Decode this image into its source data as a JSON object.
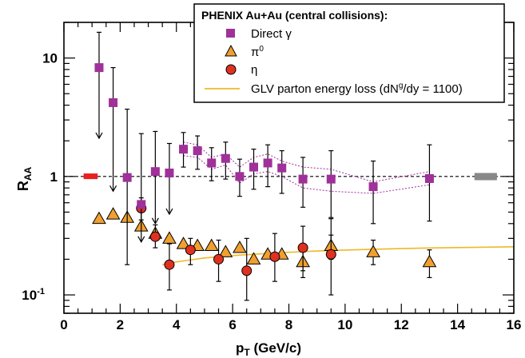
{
  "chart_data": {
    "type": "scatter",
    "title": "",
    "xlabel": "p",
    "xlabel_sub": "T",
    "xlabel_suffix": " (GeV/c)",
    "ylabel": "R",
    "ylabel_sub": "AA",
    "xlim": [
      0,
      16
    ],
    "ylim": [
      0.07,
      20
    ],
    "yscale": "log",
    "grid": false,
    "legend_placement": "top-right",
    "reference_line": 1,
    "x_ticks": [
      {
        "value": 0,
        "label": "0"
      },
      {
        "value": 2,
        "label": "2"
      },
      {
        "value": 4,
        "label": "4"
      },
      {
        "value": 6,
        "label": "6"
      },
      {
        "value": 8,
        "label": "8"
      },
      {
        "value": 10,
        "label": "10"
      },
      {
        "value": 12,
        "label": "12"
      },
      {
        "value": 14,
        "label": "14"
      },
      {
        "value": 16,
        "label": "16"
      }
    ],
    "y_ticks": [
      {
        "value": 10,
        "label": "10"
      },
      {
        "value": 1,
        "label": "1"
      },
      {
        "value": 0.1,
        "label": "10",
        "exp": "-1"
      }
    ],
    "legend": {
      "title": "PHENIX Au+Au (central collisions):",
      "entries": [
        {
          "label": "Direct γ"
        },
        {
          "label": "π",
          "sup": "0"
        },
        {
          "label": "η"
        },
        {
          "label": "GLV parton energy loss (dN",
          "sup": "g",
          "suffix": "/dy = 1100)"
        }
      ]
    },
    "colors": {
      "direct_gamma": "#a0309a",
      "pi0": "#f0a030",
      "eta": "#e03020",
      "glv": "#f0b828",
      "norm_left": "#e8201e",
      "norm_right": "#888888"
    },
    "series": [
      {
        "name": "Direct γ",
        "marker": "square",
        "points": [
          {
            "x": 1.25,
            "y": 8.3,
            "hi": 16.5,
            "ul": 2.1
          },
          {
            "x": 1.75,
            "y": 4.2,
            "hi": 8.3,
            "ul": 0.75
          },
          {
            "x": 2.25,
            "y": 0.98,
            "hi": 3.7,
            "lo": 0.18
          },
          {
            "x": 2.75,
            "y": 0.58,
            "hi": 2.3,
            "ul": 0.28
          },
          {
            "x": 3.25,
            "y": 1.1,
            "hi": 2.4,
            "ul": 0.4
          },
          {
            "x": 3.75,
            "y": 1.07,
            "hi": 1.9,
            "ul": 0.48
          },
          {
            "x": 4.25,
            "y": 1.7,
            "hi": 2.35,
            "lo": 1.2
          },
          {
            "x": 4.75,
            "y": 1.65,
            "hi": 2.2,
            "lo": 1.15
          },
          {
            "x": 5.25,
            "y": 1.3,
            "hi": 1.75,
            "lo": 0.92
          },
          {
            "x": 5.75,
            "y": 1.42,
            "hi": 1.95,
            "lo": 0.95
          },
          {
            "x": 6.25,
            "y": 1.0,
            "hi": 1.4,
            "lo": 0.68
          },
          {
            "x": 6.75,
            "y": 1.2,
            "hi": 1.7,
            "lo": 0.78
          },
          {
            "x": 7.25,
            "y": 1.3,
            "hi": 1.85,
            "lo": 0.82
          },
          {
            "x": 7.75,
            "y": 1.18,
            "hi": 1.65,
            "lo": 0.72
          },
          {
            "x": 8.5,
            "y": 0.95,
            "hi": 1.45,
            "lo": 0.55
          },
          {
            "x": 9.5,
            "y": 0.95,
            "hi": 1.65,
            "lo": 0.45
          },
          {
            "x": 11.0,
            "y": 0.82,
            "hi": 1.35,
            "lo": 0.4
          },
          {
            "x": 13.0,
            "y": 0.96,
            "hi": 1.85,
            "lo": 0.42
          }
        ]
      },
      {
        "name": "π⁰",
        "marker": "triangle",
        "points": [
          {
            "x": 1.25,
            "y": 0.44
          },
          {
            "x": 1.75,
            "y": 0.48
          },
          {
            "x": 2.25,
            "y": 0.45
          },
          {
            "x": 2.75,
            "y": 0.38
          },
          {
            "x": 3.25,
            "y": 0.33
          },
          {
            "x": 3.75,
            "y": 0.3
          },
          {
            "x": 4.25,
            "y": 0.27
          },
          {
            "x": 4.75,
            "y": 0.26
          },
          {
            "x": 5.25,
            "y": 0.26
          },
          {
            "x": 5.75,
            "y": 0.23
          },
          {
            "x": 6.25,
            "y": 0.25
          },
          {
            "x": 6.75,
            "y": 0.2
          },
          {
            "x": 7.25,
            "y": 0.22
          },
          {
            "x": 7.75,
            "y": 0.22
          },
          {
            "x": 8.5,
            "y": 0.19,
            "hi": 0.26,
            "lo": 0.14
          },
          {
            "x": 9.5,
            "y": 0.26,
            "hi": 0.32,
            "lo": 0.2
          },
          {
            "x": 11.0,
            "y": 0.23,
            "hi": 0.29,
            "lo": 0.18
          },
          {
            "x": 13.0,
            "y": 0.19,
            "hi": 0.24,
            "lo": 0.14
          }
        ]
      },
      {
        "name": "η",
        "marker": "circle",
        "points": [
          {
            "x": 2.75,
            "y": 0.54,
            "hi": 0.66,
            "lo": 0.43
          },
          {
            "x": 3.25,
            "y": 0.31,
            "hi": 0.39,
            "lo": 0.25
          },
          {
            "x": 3.75,
            "y": 0.18,
            "hi": 0.27,
            "lo": 0.11
          },
          {
            "x": 4.5,
            "y": 0.24,
            "hi": 0.3,
            "lo": 0.18
          },
          {
            "x": 5.5,
            "y": 0.2,
            "hi": 0.29,
            "lo": 0.13
          },
          {
            "x": 6.5,
            "y": 0.16,
            "hi": 0.3,
            "lo": 0.09
          },
          {
            "x": 7.5,
            "y": 0.21,
            "hi": 0.33,
            "lo": 0.13
          },
          {
            "x": 8.5,
            "y": 0.25,
            "hi": 0.38,
            "lo": 0.16
          },
          {
            "x": 9.5,
            "y": 0.22,
            "hi": 0.44,
            "lo": 0.1
          }
        ]
      }
    ],
    "gamma_band": {
      "x": [
        4.25,
        4.75,
        5.25,
        5.75,
        6.25,
        6.75,
        7.25,
        7.75,
        8.5,
        9.5,
        11.0,
        13.0
      ],
      "upper": [
        1.95,
        1.85,
        1.45,
        1.55,
        1.2,
        1.45,
        1.55,
        1.35,
        1.2,
        1.15,
        0.9,
        1.1
      ],
      "lower": [
        1.5,
        1.45,
        1.15,
        1.25,
        0.88,
        1.05,
        1.1,
        1.0,
        0.8,
        0.75,
        0.72,
        0.85
      ]
    },
    "glv_curve": {
      "x": [
        3.5,
        4.0,
        5.0,
        6.0,
        7.0,
        8.0,
        9.0,
        10.0,
        11.0,
        12.0,
        13.0,
        14.0,
        15.0,
        16.0
      ],
      "y": [
        0.18,
        0.19,
        0.205,
        0.215,
        0.222,
        0.229,
        0.235,
        0.239,
        0.243,
        0.246,
        0.249,
        0.251,
        0.253,
        0.255
      ]
    },
    "normalization_boxes": [
      {
        "side": "left",
        "x0": 0.7,
        "x1": 1.2,
        "y0": 0.95,
        "y1": 1.06
      },
      {
        "side": "right",
        "x0": 14.6,
        "x1": 15.4,
        "y0": 0.93,
        "y1": 1.07
      }
    ]
  }
}
